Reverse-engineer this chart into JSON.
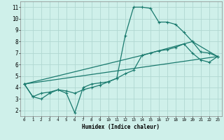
{
  "xlabel": "Humidex (Indice chaleur)",
  "bg_color": "#cff0ea",
  "grid_color": "#b0d8d2",
  "line_color": "#1a7a6e",
  "xlim": [
    -0.5,
    23.5
  ],
  "ylim": [
    1.5,
    11.5
  ],
  "xticks": [
    0,
    1,
    2,
    3,
    4,
    5,
    6,
    7,
    8,
    9,
    10,
    11,
    12,
    13,
    14,
    15,
    16,
    17,
    18,
    19,
    20,
    21,
    22,
    23
  ],
  "yticks": [
    2,
    3,
    4,
    5,
    6,
    7,
    8,
    9,
    10,
    11
  ],
  "line1_x": [
    0,
    1,
    2,
    3,
    4,
    5,
    6,
    7,
    8,
    9,
    10,
    11,
    12,
    13,
    14,
    15,
    16,
    17,
    18,
    19,
    20,
    21,
    22,
    23
  ],
  "line1_y": [
    4.3,
    3.2,
    3.0,
    3.5,
    3.8,
    3.5,
    1.8,
    4.0,
    4.3,
    4.4,
    4.5,
    4.8,
    8.5,
    11.0,
    11.0,
    10.9,
    9.7,
    9.7,
    9.5,
    8.8,
    8.0,
    7.1,
    7.0,
    6.7
  ],
  "line2_x": [
    0,
    1,
    2,
    3,
    4,
    5,
    6,
    7,
    8,
    9,
    10,
    11,
    12,
    13,
    14,
    15,
    16,
    17,
    18,
    19,
    20,
    21,
    22,
    23
  ],
  "line2_y": [
    4.3,
    3.2,
    3.5,
    3.6,
    3.8,
    3.7,
    3.5,
    3.8,
    4.0,
    4.2,
    4.5,
    4.8,
    5.2,
    5.5,
    6.8,
    7.0,
    7.2,
    7.3,
    7.5,
    7.8,
    7.0,
    6.4,
    6.2,
    6.7
  ],
  "line3_x": [
    0,
    23
  ],
  "line3_y": [
    4.3,
    6.7
  ],
  "line4_x": [
    0,
    14,
    20,
    23
  ],
  "line4_y": [
    4.3,
    6.8,
    8.0,
    6.7
  ]
}
